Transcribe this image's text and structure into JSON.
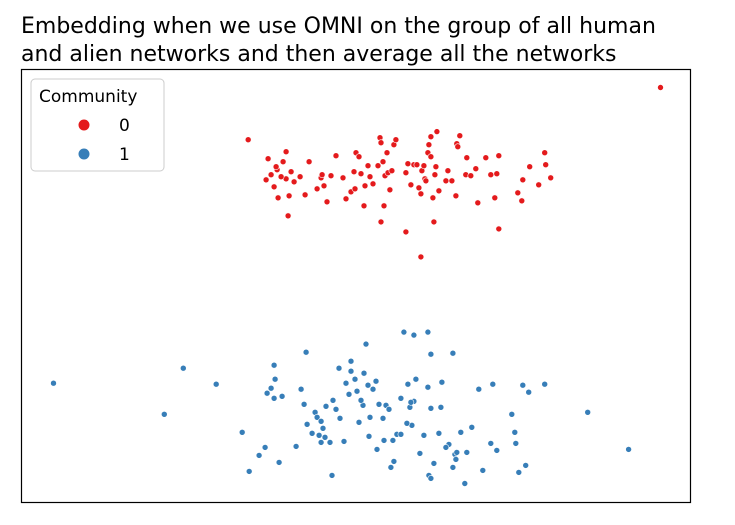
{
  "chart_data": {
    "type": "scatter",
    "title_lines": [
      "Embedding when we use OMNI on the group of all human",
      "and alien networks and then average all the networks"
    ],
    "xlabel": "",
    "ylabel": "",
    "xlim": [
      0,
      670
    ],
    "ylim": [
      0,
      432
    ],
    "grid": false,
    "axes_ticks": false,
    "legend": {
      "title": "Community",
      "placement": "top-left",
      "entries": [
        {
          "label": "0",
          "color": "#e41a1c"
        },
        {
          "label": "1",
          "color": "#377eb8"
        }
      ]
    },
    "series": [
      {
        "name": "0",
        "color": "#e41a1c",
        "points": [
          [
            227,
            362
          ],
          [
            247,
            343
          ],
          [
            256,
            332
          ],
          [
            265,
            323
          ],
          [
            265,
            350
          ],
          [
            260,
            325
          ],
          [
            255,
            335
          ],
          [
            245,
            322
          ],
          [
            250,
            327
          ],
          [
            253,
            315
          ],
          [
            257,
            304
          ],
          [
            262,
            340
          ],
          [
            268,
            306
          ],
          [
            270,
            330
          ],
          [
            273,
            320
          ],
          [
            279,
            325
          ],
          [
            284,
            307
          ],
          [
            288,
            340
          ],
          [
            296,
            313
          ],
          [
            300,
            324
          ],
          [
            301,
            327
          ],
          [
            303,
            316
          ],
          [
            306,
            300
          ],
          [
            310,
            326
          ],
          [
            315,
            346
          ],
          [
            322,
            324
          ],
          [
            325,
            303
          ],
          [
            330,
            310
          ],
          [
            333,
            330
          ],
          [
            334,
            313
          ],
          [
            335,
            349
          ],
          [
            338,
            345
          ],
          [
            340,
            328
          ],
          [
            343,
            296
          ],
          [
            344,
            316
          ],
          [
            347,
            336
          ],
          [
            349,
            325
          ],
          [
            352,
            318
          ],
          [
            357,
            336
          ],
          [
            359,
            364
          ],
          [
            360,
            359
          ],
          [
            362,
            340
          ],
          [
            363,
            296
          ],
          [
            364,
            326
          ],
          [
            366,
            349
          ],
          [
            367,
            329
          ],
          [
            369,
            312
          ],
          [
            371,
            331
          ],
          [
            373,
            357
          ],
          [
            375,
            362
          ],
          [
            385,
            329
          ],
          [
            387,
            338
          ],
          [
            390,
            317
          ],
          [
            393,
            337
          ],
          [
            396,
            337
          ],
          [
            398,
            314
          ],
          [
            400,
            308
          ],
          [
            401,
            331
          ],
          [
            403,
            336
          ],
          [
            404,
            323
          ],
          [
            405,
            321
          ],
          [
            407,
            349
          ],
          [
            408,
            357
          ],
          [
            410,
            345
          ],
          [
            410,
            365
          ],
          [
            412,
            304
          ],
          [
            414,
            327
          ],
          [
            415,
            335
          ],
          [
            416,
            370
          ],
          [
            418,
            311
          ],
          [
            425,
            321
          ],
          [
            427,
            331
          ],
          [
            431,
            321
          ],
          [
            436,
            358
          ],
          [
            437,
            355
          ],
          [
            439,
            366
          ],
          [
            445,
            327
          ],
          [
            446,
            344
          ],
          [
            450,
            326
          ],
          [
            455,
            333
          ],
          [
            457,
            299
          ],
          [
            465,
            344
          ],
          [
            470,
            327
          ],
          [
            474,
            304
          ],
          [
            476,
            328
          ],
          [
            478,
            346
          ],
          [
            497,
            309
          ],
          [
            501,
            301
          ],
          [
            502,
            322
          ],
          [
            509,
            335
          ],
          [
            518,
            317
          ],
          [
            524,
            349
          ],
          [
            525,
            337
          ],
          [
            530,
            324
          ],
          [
            400,
            245
          ],
          [
            385,
            270
          ],
          [
            413,
            280
          ],
          [
            478,
            273
          ],
          [
            640,
            414
          ],
          [
            267,
            286
          ],
          [
            360,
            280
          ],
          [
            435,
            306
          ]
        ]
      },
      {
        "name": "1",
        "color": "#377eb8",
        "points": [
          [
            32,
            119
          ],
          [
            143,
            88
          ],
          [
            162,
            134
          ],
          [
            195,
            118
          ],
          [
            221,
            70
          ],
          [
            228,
            31
          ],
          [
            238,
            47
          ],
          [
            244,
            55
          ],
          [
            246,
            109
          ],
          [
            250,
            114
          ],
          [
            253,
            104
          ],
          [
            254,
            123
          ],
          [
            258,
            40
          ],
          [
            261,
            106
          ],
          [
            275,
            56
          ],
          [
            280,
            113
          ],
          [
            283,
            98
          ],
          [
            286,
            78
          ],
          [
            291,
            69
          ],
          [
            294,
            90
          ],
          [
            296,
            85
          ],
          [
            298,
            67
          ],
          [
            300,
            81
          ],
          [
            302,
            74
          ],
          [
            304,
            65
          ],
          [
            305,
            96
          ],
          [
            309,
            60
          ],
          [
            311,
            27
          ],
          [
            312,
            102
          ],
          [
            315,
            93
          ],
          [
            318,
            134
          ],
          [
            323,
            61
          ],
          [
            325,
            119
          ],
          [
            328,
            108
          ],
          [
            330,
            141
          ],
          [
            334,
            123
          ],
          [
            336,
            111
          ],
          [
            338,
            80
          ],
          [
            342,
            97
          ],
          [
            343,
            129
          ],
          [
            345,
            158
          ],
          [
            347,
            117
          ],
          [
            349,
            85
          ],
          [
            352,
            113
          ],
          [
            355,
            121
          ],
          [
            358,
            98
          ],
          [
            362,
            84
          ],
          [
            363,
            62
          ],
          [
            365,
            97
          ],
          [
            368,
            93
          ],
          [
            370,
            35
          ],
          [
            373,
            41
          ],
          [
            376,
            68
          ],
          [
            380,
            104
          ],
          [
            383,
            170
          ],
          [
            387,
            118
          ],
          [
            389,
            95
          ],
          [
            391,
            77
          ],
          [
            393,
            101
          ],
          [
            395,
            123
          ],
          [
            399,
            49
          ],
          [
            403,
            67
          ],
          [
            407,
            115
          ],
          [
            408,
            27
          ],
          [
            410,
            24
          ],
          [
            413,
            39
          ],
          [
            418,
            69
          ],
          [
            421,
            120
          ],
          [
            432,
            35
          ],
          [
            434,
            48
          ],
          [
            436,
            50
          ],
          [
            440,
            70
          ],
          [
            444,
            19
          ],
          [
            446,
            50
          ],
          [
            451,
            75
          ],
          [
            458,
            113
          ],
          [
            462,
            32
          ],
          [
            470,
            59
          ],
          [
            472,
            118
          ],
          [
            476,
            52
          ],
          [
            491,
            88
          ],
          [
            494,
            70
          ],
          [
            495,
            59
          ],
          [
            498,
            30
          ],
          [
            502,
            117
          ],
          [
            505,
            37
          ],
          [
            508,
            110
          ],
          [
            524,
            118
          ],
          [
            567,
            90
          ],
          [
            608,
            53
          ],
          [
            432,
            149
          ],
          [
            407,
            170
          ],
          [
            410,
            148
          ],
          [
            393,
            167
          ],
          [
            285,
            150
          ],
          [
            253,
            137
          ],
          [
            410,
            94
          ],
          [
            428,
            58
          ],
          [
            330,
            131
          ],
          [
            435,
            43
          ],
          [
            386,
            79
          ],
          [
            420,
            95
          ],
          [
            356,
            53
          ],
          [
            340,
            102
          ],
          [
            319,
            84
          ],
          [
            372,
            62
          ],
          [
            390,
            100
          ],
          [
            348,
            66
          ],
          [
            300,
            60
          ],
          [
            425,
            55
          ],
          [
            380,
            68
          ]
        ]
      }
    ]
  }
}
